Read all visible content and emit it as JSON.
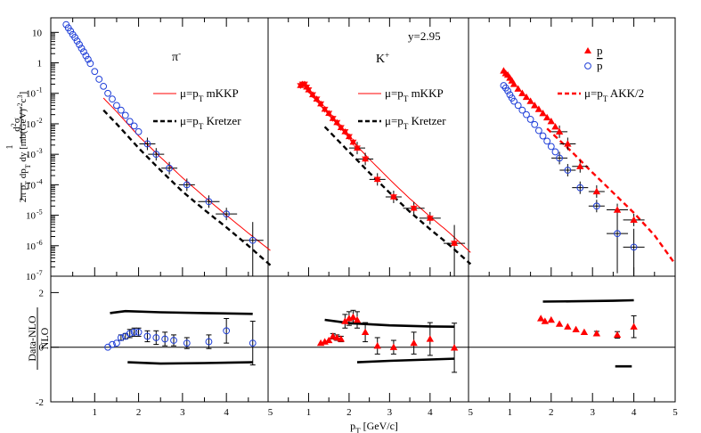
{
  "chart_data": {
    "type": "scatter",
    "x_axis_label": "p_T [GeV/c]",
    "x_tick_labels": [
      "1",
      "2",
      "3",
      "4",
      "5"
    ],
    "xlim": [
      0,
      5
    ],
    "top_y_axis_label": "1/(2π p_T) d²σ/(dp_T dy) [mb(GeV)^-2 c^3]",
    "top_y_scale": "log",
    "top_ylim": [
      1e-07,
      30
    ],
    "top_y_tick_labels": [
      "10",
      "1",
      "10",
      "10",
      "10",
      "10",
      "10",
      "10",
      "10"
    ],
    "top_y_tick_exponents": [
      "",
      "",
      "-1",
      "-2",
      "-3",
      "-4",
      "-5",
      "-6",
      "-7"
    ],
    "bottom_y_axis_label": "Data-NLO / NLO",
    "bottom_ylim": [
      -2,
      2.6
    ],
    "bottom_y_tick_labels": [
      "2",
      "0",
      "-2"
    ],
    "panels": [
      {
        "particle_label": "π",
        "particle_sup": "-",
        "legend": [
          {
            "label": "μ=p",
            "sub": "T",
            "suffix": " mKKP",
            "style": "solid-red"
          },
          {
            "label": "μ=p",
            "sub": "T",
            "suffix": " Kretzer",
            "style": "dashed-black"
          }
        ],
        "series": [
          {
            "name": "π- data",
            "marker": "open-circle-blue",
            "x": [
              0.35,
              0.4,
              0.45,
              0.5,
              0.55,
              0.6,
              0.65,
              0.7,
              0.75,
              0.8,
              0.85,
              0.9,
              1.0,
              1.1,
              1.2,
              1.3,
              1.4,
              1.5,
              1.6,
              1.7,
              1.8,
              1.9,
              2.0,
              2.2,
              2.4,
              2.7,
              3.1,
              3.6,
              4.0,
              4.6
            ],
            "y": [
              18,
              14,
              11,
              8.5,
              6.8,
              5.2,
              4.0,
              3.0,
              2.3,
              1.7,
              1.3,
              0.95,
              0.52,
              0.29,
              0.17,
              0.1,
              0.065,
              0.04,
              0.028,
              0.019,
              0.012,
              0.0085,
              0.0055,
              0.0022,
              0.001,
              0.00035,
              0.0001,
              2.8e-05,
              1.1e-05,
              1.5e-06
            ]
          }
        ],
        "curves": [
          {
            "name": "μ=pT mKKP",
            "x": [
              1.2,
              1.5,
              2.0,
              2.5,
              3.0,
              3.5,
              4.0,
              4.5,
              5.0
            ],
            "y": [
              0.07,
              0.025,
              0.004,
              0.0008,
              0.00017,
              4e-05,
              1e-05,
              2.6e-06,
              7e-07
            ]
          },
          {
            "name": "μ=pT Kretzer",
            "x": [
              1.2,
              1.5,
              2.0,
              2.5,
              3.0,
              3.5,
              4.0,
              4.5,
              5.0
            ],
            "y": [
              0.028,
              0.01,
              0.0016,
              0.0003,
              6e-05,
              1.5e-05,
              4e-06,
              1e-06,
              2.3e-07
            ]
          }
        ],
        "ratio": {
          "x": [
            1.3,
            1.4,
            1.5,
            1.6,
            1.7,
            1.8,
            1.9,
            2.0,
            2.2,
            2.4,
            2.6,
            2.8,
            3.1,
            3.6,
            4.0,
            4.6
          ],
          "y": [
            0.0,
            0.1,
            0.15,
            0.35,
            0.4,
            0.5,
            0.55,
            0.55,
            0.4,
            0.35,
            0.3,
            0.25,
            0.15,
            0.2,
            0.6,
            0.15
          ],
          "err": [
            0.05,
            0.05,
            0.05,
            0.1,
            0.1,
            0.15,
            0.15,
            0.15,
            0.2,
            0.25,
            0.25,
            0.2,
            0.2,
            0.25,
            0.45,
            0.8
          ],
          "band_upper": {
            "x": [
              1.35,
              1.7,
              2.5,
              3.5,
              4.6
            ],
            "y": [
              1.25,
              1.32,
              1.28,
              1.25,
              1.22
            ]
          },
          "band_lower": {
            "x": [
              1.75,
              2.5,
              3.5,
              4.6
            ],
            "y": [
              -0.55,
              -0.6,
              -0.58,
              -0.55
            ]
          }
        }
      },
      {
        "particle_label": "K",
        "particle_sup": "+",
        "annotation": "y=2.95",
        "legend": [
          {
            "label": "μ=p",
            "sub": "T",
            "suffix": " mKKP",
            "style": "solid-red"
          },
          {
            "label": "μ=p",
            "sub": "T",
            "suffix": " Kretzer",
            "style": "dashed-black"
          }
        ],
        "series": [
          {
            "name": "K+ data",
            "marker": "filled-triangle-red-star",
            "x": [
              0.8,
              0.85,
              0.9,
              0.95,
              1.0,
              1.1,
              1.2,
              1.3,
              1.4,
              1.5,
              1.6,
              1.7,
              1.8,
              1.9,
              2.0,
              2.1,
              2.2,
              2.4,
              2.7,
              3.1,
              3.6,
              4.0,
              4.6
            ],
            "y": [
              0.18,
              0.2,
              0.2,
              0.16,
              0.13,
              0.09,
              0.065,
              0.045,
              0.03,
              0.022,
              0.015,
              0.011,
              0.0075,
              0.0055,
              0.0038,
              0.0025,
              0.0016,
              0.0007,
              0.00015,
              4e-05,
              1.7e-05,
              8e-06,
              1.2e-06
            ]
          }
        ],
        "curves": [
          {
            "name": "μ=pT mKKP",
            "x": [
              1.0,
              1.5,
              2.0,
              2.5,
              3.0,
              3.5,
              4.0,
              4.5,
              5.0
            ],
            "y": [
              0.11,
              0.02,
              0.0035,
              0.0007,
              0.00015,
              3.5e-05,
              9e-06,
              2.5e-06,
              6e-07
            ]
          },
          {
            "name": "μ=pT Kretzer",
            "x": [
              1.4,
              2.0,
              2.5,
              3.0,
              3.5,
              4.0,
              4.5,
              5.0
            ],
            "y": [
              0.008,
              0.0012,
              0.00025,
              5.5e-05,
              1.3e-05,
              3.5e-06,
              1e-06,
              2.5e-07
            ]
          }
        ],
        "ratio": {
          "x": [
            1.3,
            1.4,
            1.5,
            1.6,
            1.7,
            1.8,
            1.9,
            2.0,
            2.1,
            2.2,
            2.4,
            2.7,
            3.1,
            3.6,
            4.0,
            4.6
          ],
          "y": [
            0.15,
            0.2,
            0.25,
            0.4,
            0.35,
            0.3,
            0.95,
            1.05,
            1.1,
            1.0,
            0.55,
            0.05,
            0.0,
            0.15,
            0.3,
            -0.02
          ],
          "err": [
            0.05,
            0.05,
            0.05,
            0.1,
            0.1,
            0.1,
            0.25,
            0.25,
            0.25,
            0.3,
            0.35,
            0.3,
            0.25,
            0.4,
            0.6,
            0.9
          ],
          "band_upper": {
            "x": [
              1.4,
              2.0,
              3.0,
              4.0,
              4.6
            ],
            "y": [
              1.0,
              0.88,
              0.8,
              0.76,
              0.75
            ]
          },
          "band_lower": {
            "x": [
              2.2,
              3.0,
              4.0,
              4.6
            ],
            "y": [
              -0.55,
              -0.5,
              -0.45,
              -0.42
            ]
          }
        }
      },
      {
        "legend": [
          {
            "label": "p",
            "overline": false,
            "style": "filled-triangle-red"
          },
          {
            "label": "p",
            "overline": true,
            "style": "open-circle-blue"
          },
          {
            "label": "μ=p",
            "sub": "T",
            "suffix": " AKK/2",
            "style": "dashed-red"
          }
        ],
        "series": [
          {
            "name": "p",
            "marker": "filled-triangle-red",
            "x": [
              0.85,
              0.9,
              0.95,
              1.0,
              1.05,
              1.1,
              1.2,
              1.3,
              1.4,
              1.5,
              1.6,
              1.7,
              1.8,
              1.9,
              2.0,
              2.1,
              2.2,
              2.4,
              2.7,
              3.1,
              3.6,
              4.0
            ],
            "y": [
              0.55,
              0.45,
              0.4,
              0.32,
              0.26,
              0.2,
              0.14,
              0.1,
              0.075,
              0.055,
              0.04,
              0.03,
              0.022,
              0.016,
              0.012,
              0.008,
              0.0055,
              0.0022,
              0.0004,
              6e-05,
              1.5e-05,
              7e-06
            ]
          },
          {
            "name": "pbar",
            "marker": "open-circle-blue",
            "x": [
              0.85,
              0.9,
              0.95,
              1.0,
              1.05,
              1.1,
              1.2,
              1.3,
              1.4,
              1.5,
              1.6,
              1.7,
              1.8,
              1.9,
              2.0,
              2.1,
              2.2,
              2.4,
              2.7,
              3.1,
              3.6,
              4.0
            ],
            "y": [
              0.18,
              0.15,
              0.12,
              0.09,
              0.07,
              0.055,
              0.04,
              0.028,
              0.02,
              0.014,
              0.0095,
              0.006,
              0.004,
              0.0027,
              0.0018,
              0.0012,
              0.00075,
              0.0003,
              8e-05,
              2e-05,
              2.5e-06,
              9e-07
            ]
          }
        ],
        "curves": [
          {
            "name": "μ=pT AKK/2",
            "x": [
              1.9,
              2.5,
              3.0,
              3.5,
              4.0,
              4.5,
              5.0
            ],
            "y": [
              0.007,
              0.0012,
              0.00025,
              5.5e-05,
              1.2e-05,
              2.2e-06,
              2.5e-07
            ]
          }
        ],
        "ratio": {
          "x": [
            1.75,
            1.85,
            2.0,
            2.2,
            2.4,
            2.6,
            2.8,
            3.1,
            3.6,
            4.0
          ],
          "y": [
            1.05,
            0.95,
            1.0,
            0.85,
            0.75,
            0.65,
            0.55,
            0.5,
            0.45,
            0.75
          ],
          "err": [
            0.05,
            0.05,
            0.05,
            0.05,
            0.05,
            0.05,
            0.05,
            0.08,
            0.12,
            0.4
          ],
          "band_upper": {
            "x": [
              1.8,
              2.5,
              3.5,
              4.0
            ],
            "y": [
              1.67,
              1.68,
              1.7,
              1.72
            ]
          },
          "band_lower": {
            "x": [
              3.55,
              3.95
            ],
            "y": [
              -0.7,
              -0.7
            ]
          }
        }
      }
    ]
  },
  "colors": {
    "red": "#ff0000",
    "blue": "#1f3fd8",
    "black": "#000000"
  }
}
